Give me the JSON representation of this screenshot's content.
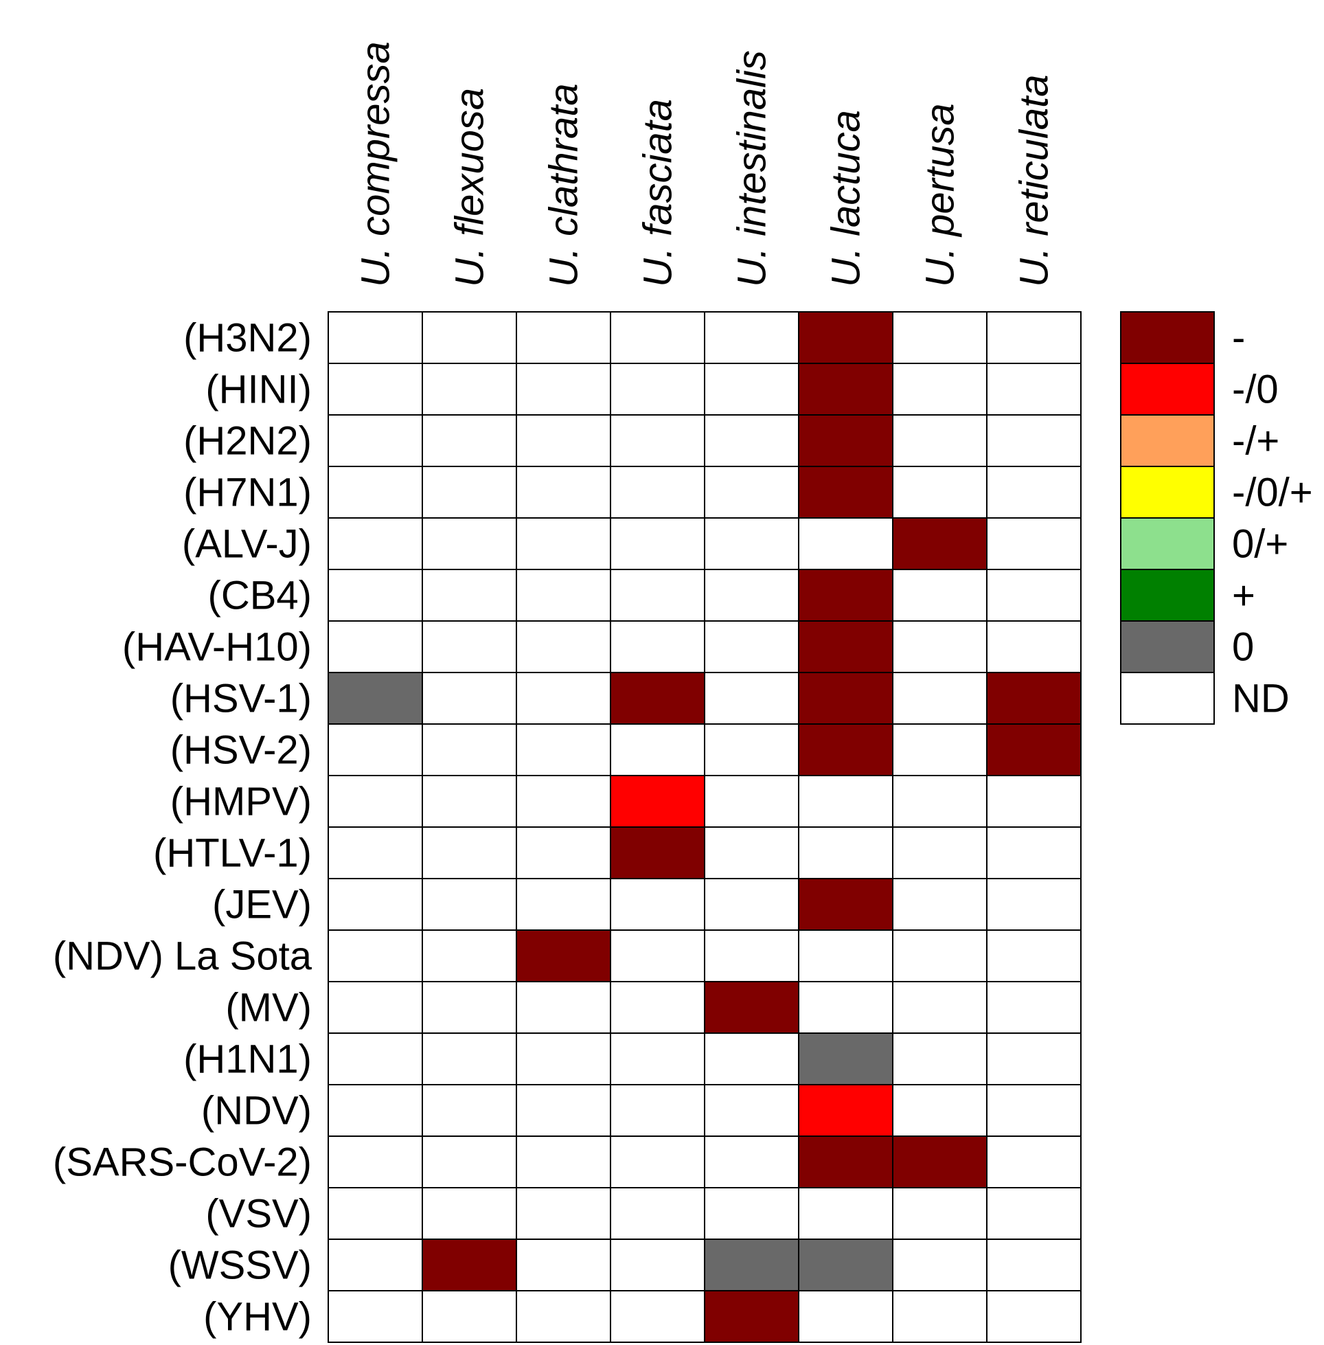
{
  "chart_data": {
    "type": "heatmap",
    "columns": [
      "U. compressa",
      "U. flexuosa",
      "U. clathrata",
      "U. fasciata",
      "U. intestinalis",
      "U. lactuca",
      "U. pertusa",
      "U. reticulata"
    ],
    "rows": [
      "(H3N2)",
      "(HINI)",
      "(H2N2)",
      "(H7N1)",
      "(ALV-J)",
      "(CB4)",
      "(HAV-H10)",
      "(HSV-1)",
      "(HSV-2)",
      "(HMPV)",
      "(HTLV-1)",
      "(JEV)",
      "(NDV) La Sota",
      "(MV)",
      "(H1N1)",
      "(NDV)",
      "(SARS-CoV-2)",
      "(VSV)",
      "(WSSV)",
      "(YHV)"
    ],
    "cells": [
      [
        "ND",
        "ND",
        "ND",
        "ND",
        "ND",
        "-",
        "ND",
        "ND"
      ],
      [
        "ND",
        "ND",
        "ND",
        "ND",
        "ND",
        "-",
        "ND",
        "ND"
      ],
      [
        "ND",
        "ND",
        "ND",
        "ND",
        "ND",
        "-",
        "ND",
        "ND"
      ],
      [
        "ND",
        "ND",
        "ND",
        "ND",
        "ND",
        "-",
        "ND",
        "ND"
      ],
      [
        "ND",
        "ND",
        "ND",
        "ND",
        "ND",
        "ND",
        "-",
        "ND"
      ],
      [
        "ND",
        "ND",
        "ND",
        "ND",
        "ND",
        "-",
        "ND",
        "ND"
      ],
      [
        "ND",
        "ND",
        "ND",
        "ND",
        "ND",
        "-",
        "ND",
        "ND"
      ],
      [
        "0",
        "ND",
        "ND",
        "-",
        "ND",
        "-",
        "ND",
        "-"
      ],
      [
        "ND",
        "ND",
        "ND",
        "ND",
        "ND",
        "-",
        "ND",
        "-"
      ],
      [
        "ND",
        "ND",
        "ND",
        "-/0",
        "ND",
        "ND",
        "ND",
        "ND"
      ],
      [
        "ND",
        "ND",
        "ND",
        "-",
        "ND",
        "ND",
        "ND",
        "ND"
      ],
      [
        "ND",
        "ND",
        "ND",
        "ND",
        "ND",
        "-",
        "ND",
        "ND"
      ],
      [
        "ND",
        "ND",
        "-",
        "ND",
        "ND",
        "ND",
        "ND",
        "ND"
      ],
      [
        "ND",
        "ND",
        "ND",
        "ND",
        "-",
        "ND",
        "ND",
        "ND"
      ],
      [
        "ND",
        "ND",
        "ND",
        "ND",
        "ND",
        "0",
        "ND",
        "ND"
      ],
      [
        "ND",
        "ND",
        "ND",
        "ND",
        "ND",
        "-/0",
        "ND",
        "ND"
      ],
      [
        "ND",
        "ND",
        "ND",
        "ND",
        "ND",
        "-",
        "-",
        "ND"
      ],
      [
        "ND",
        "ND",
        "ND",
        "ND",
        "ND",
        "ND",
        "ND",
        "ND"
      ],
      [
        "ND",
        "-",
        "ND",
        "ND",
        "0",
        "0",
        "ND",
        "ND"
      ],
      [
        "ND",
        "ND",
        "ND",
        "ND",
        "-",
        "ND",
        "ND",
        "ND"
      ]
    ],
    "legend": [
      {
        "label": "-",
        "color": "#800000"
      },
      {
        "label": "-/0",
        "color": "#FF0000"
      },
      {
        "label": "-/+",
        "color": "#FFA05A"
      },
      {
        "label": "-/0/+",
        "color": "#FFFF00"
      },
      {
        "label": "0/+",
        "color": "#8DE08D"
      },
      {
        "label": "+",
        "color": "#008000"
      },
      {
        "label": "0",
        "color": "#696969"
      },
      {
        "label": "ND",
        "color": "#FFFFFF"
      }
    ],
    "legend_position": "right",
    "grid": true
  }
}
